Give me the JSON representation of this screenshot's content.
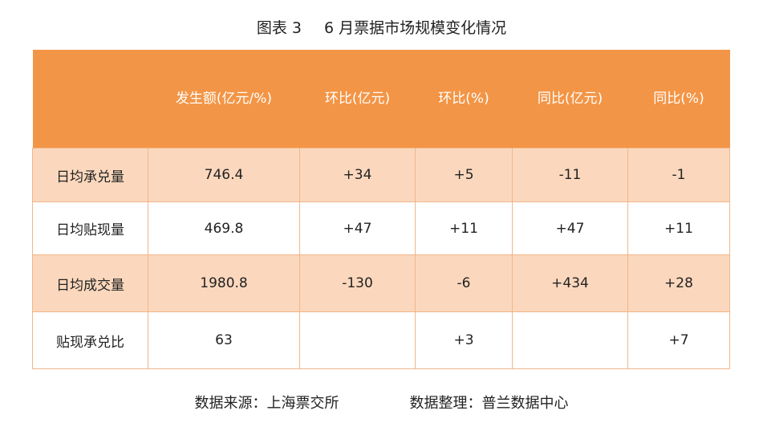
{
  "title": {
    "figure_label": "图表 3",
    "text": "6 月票据市场规模变化情况"
  },
  "table": {
    "headers": [
      "",
      "发生额(亿元/%)",
      "环比(亿元)",
      "环比(%)",
      "同比(亿元)",
      "同比(%)"
    ],
    "rows": [
      {
        "label": "日均承兑量",
        "values": [
          "746.4",
          "+34",
          "+5",
          "-11",
          "-1"
        ]
      },
      {
        "label": "日均贴现量",
        "values": [
          "469.8",
          "+47",
          "+11",
          "+47",
          "+11"
        ]
      },
      {
        "label": "日均成交量",
        "values": [
          "1980.8",
          "-130",
          "-6",
          "+434",
          "+28"
        ]
      },
      {
        "label": "贴现承兑比",
        "values": [
          "63",
          "",
          "+3",
          "",
          "+7"
        ]
      }
    ]
  },
  "footer": {
    "source": "数据来源：上海票交所",
    "compiled": "数据整理：普兰数据中心"
  },
  "colors": {
    "header_bg": "#f39546",
    "shaded_row_bg": "#fbd8bd",
    "border": "#f0b68a"
  }
}
